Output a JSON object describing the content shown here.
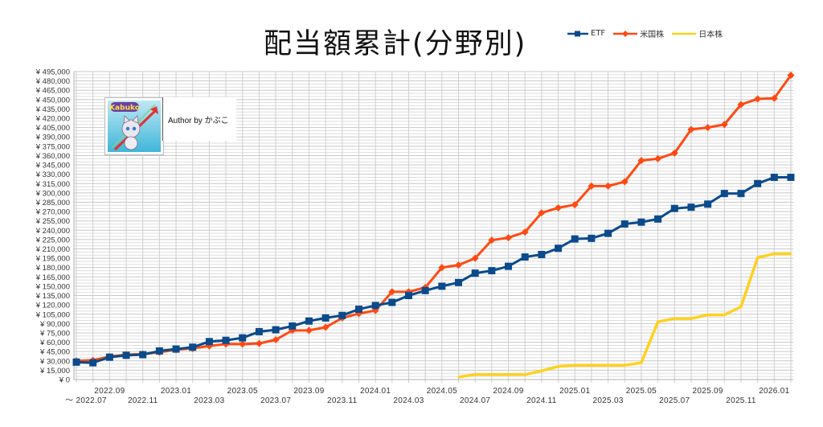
{
  "chart_data": {
    "type": "line",
    "title": "配当額累計(分野別)",
    "xlabel": "",
    "ylabel": "",
    "ylim": [
      0,
      495000
    ],
    "ytick_step": 15000,
    "ytick_prefix": "¥ ",
    "grid": true,
    "legend_position": "top-right",
    "x": [
      "2022.07",
      "2022.08",
      "2022.09",
      "2022.10",
      "2022.11",
      "2022.12",
      "2023.01",
      "2023.02",
      "2023.03",
      "2023.04",
      "2023.05",
      "2023.06",
      "2023.07",
      "2023.08",
      "2023.09",
      "2023.10",
      "2023.11",
      "2023.12",
      "2024.01",
      "2024.02",
      "2024.03",
      "2024.04",
      "2024.05",
      "2024.06",
      "2024.07",
      "2024.08",
      "2024.09",
      "2024.10",
      "2024.11",
      "2024.12",
      "2025.01",
      "2025.02",
      "2025.03",
      "2025.04",
      "2025.05",
      "2025.06",
      "2025.07",
      "2025.08",
      "2025.09",
      "2025.10",
      "2025.11",
      "2025.12",
      "2026.01",
      "2026.02"
    ],
    "xtick_labels_upper": [
      "2022.09",
      "2023.01",
      "2023.05",
      "2023.09",
      "2024.01",
      "2024.05",
      "2024.09",
      "2025.01",
      "2025.05",
      "2025.09",
      "2026.01"
    ],
    "xtick_labels_lower": [
      "～ 2022.07",
      "2022.11",
      "2023.03",
      "2023.07",
      "2023.11",
      "2024.03",
      "2024.07",
      "2024.11",
      "2025.03",
      "2025.07",
      "2025.11"
    ],
    "series": [
      {
        "name": "ETF",
        "color": "#0b4a8b",
        "marker": "square",
        "values": [
          28000,
          27000,
          36000,
          39000,
          40000,
          46000,
          49000,
          52000,
          61000,
          63000,
          67000,
          77000,
          80000,
          86000,
          94000,
          99000,
          103000,
          113000,
          119000,
          124000,
          135000,
          143000,
          150000,
          156000,
          171000,
          175000,
          182000,
          197000,
          201000,
          211000,
          226000,
          227000,
          235000,
          250000,
          253000,
          258000,
          275000,
          277000,
          282000,
          299000,
          299000,
          315000,
          325000,
          325000
        ]
      },
      {
        "name": "米国株",
        "color": "#ff4a12",
        "marker": "diamond",
        "values": [
          30000,
          31000,
          37000,
          40000,
          41000,
          44000,
          48000,
          50000,
          54000,
          57000,
          57000,
          58000,
          64000,
          79000,
          79000,
          84000,
          99000,
          106000,
          111000,
          141000,
          141000,
          148000,
          180000,
          184000,
          195000,
          224000,
          228000,
          237000,
          268000,
          276000,
          281000,
          311000,
          311000,
          318000,
          352000,
          355000,
          364000,
          402000,
          405000,
          410000,
          442000,
          451000,
          452000,
          489000
        ]
      },
      {
        "name": "日本株",
        "color": "#ffd11f",
        "marker": "none",
        "values": [
          null,
          null,
          null,
          null,
          null,
          null,
          null,
          null,
          null,
          null,
          null,
          null,
          null,
          null,
          null,
          null,
          null,
          null,
          null,
          null,
          null,
          null,
          null,
          4000,
          8000,
          8000,
          8000,
          8000,
          14000,
          21000,
          23000,
          23000,
          23000,
          23000,
          27000,
          93000,
          98000,
          98000,
          104000,
          104000,
          117000,
          196000,
          202000,
          202000
        ]
      }
    ]
  },
  "author_label": "Author by かぶこ",
  "logo_text": "Kabuko"
}
